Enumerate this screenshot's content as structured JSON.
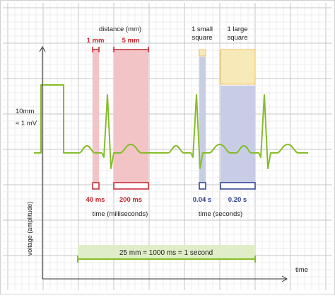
{
  "labels": {
    "distance": "distance (mm)",
    "mm1": "1 mm",
    "mm5": "5 mm",
    "small_square": [
      "1 small",
      "square"
    ],
    "large_square": [
      "1 large",
      "square"
    ],
    "calibration": [
      "10mm",
      "≈ 1 mV"
    ],
    "ms40": "40 ms",
    "ms200": "200 ms",
    "s004": "0.04 s",
    "s020": "0.20 s",
    "time_ms": "time (milliseconds)",
    "time_s": "time (seconds)",
    "y_axis": "voltage (amplitude)",
    "x_axis": "time",
    "scale_bar": "25 mm = 1000 ms = 1 second"
  },
  "colors": {
    "grid_major": "#c4c4c4",
    "grid_minor": "#e7e7e7",
    "ecg": "#86bd2a",
    "red": "#c8232c",
    "red_fill": "#f2c4c6",
    "blue": "#2c3e8e",
    "blue_fill": "#c8cde6",
    "yellow_stroke": "#f0c060",
    "yellow_fill": "#f6eab8",
    "green_band": "#dfeec8",
    "axis": "#333333",
    "text": "#222222"
  }
}
